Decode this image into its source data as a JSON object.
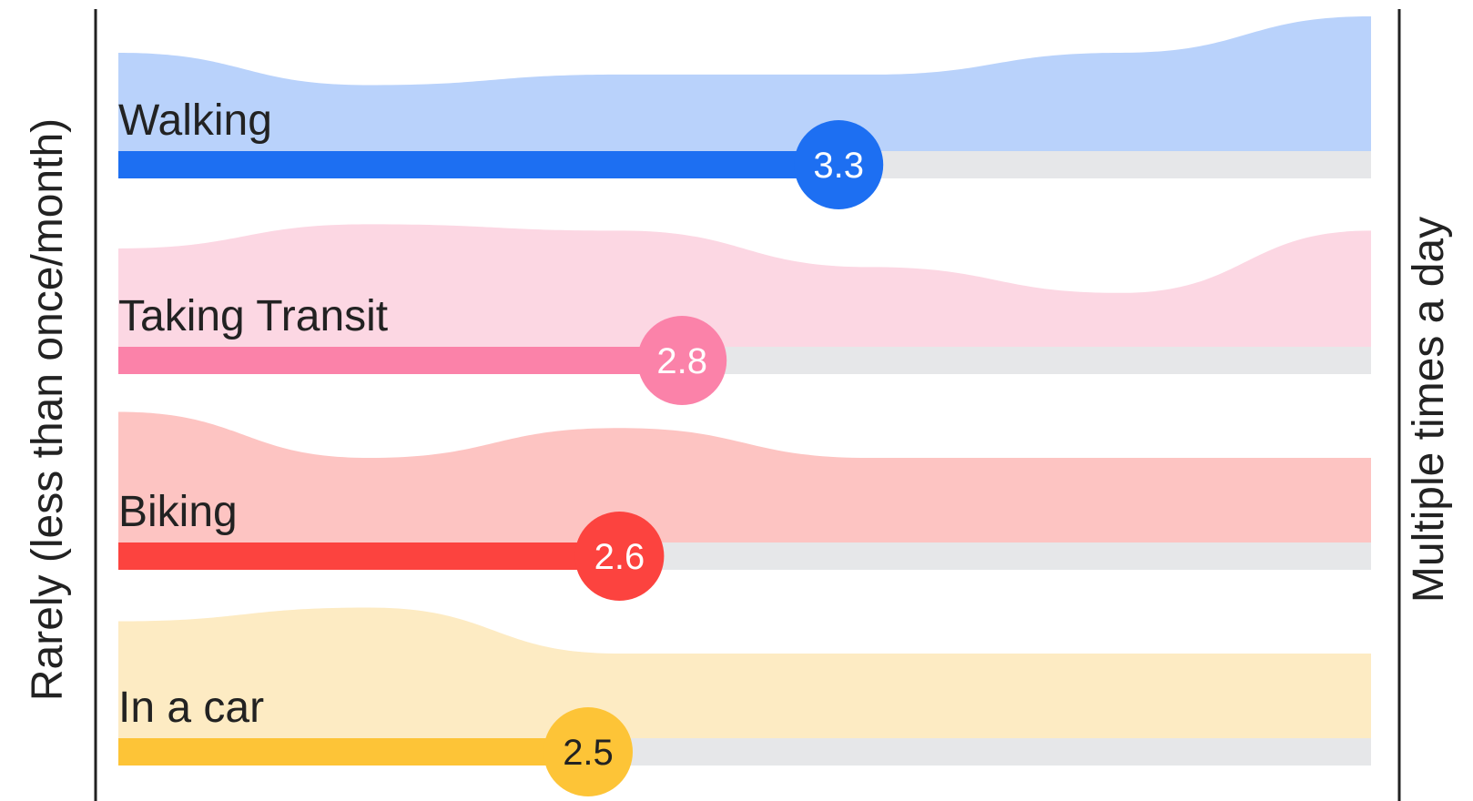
{
  "chart_data": {
    "type": "bar",
    "x_axis_left_label": "Rarely (less than once/month)",
    "x_axis_right_label": "Multiple times a day",
    "xlim": [
      1,
      5
    ],
    "track_color": "#e6e7e9",
    "series": [
      {
        "label": "Walking",
        "value": 3.3,
        "value_text": "3.3",
        "bar_color": "#1d6ff2",
        "fill_color": "#b9d2fb",
        "marker_text_color": "#ffffff",
        "distribution": [
          0.55,
          0.15,
          0.28,
          0.28,
          0.55,
          1.0
        ]
      },
      {
        "label": "Taking Transit",
        "value": 2.8,
        "value_text": "2.8",
        "bar_color": "#fb82a9",
        "fill_color": "#fcd7e3",
        "marker_text_color": "#ffffff",
        "distribution": [
          0.55,
          0.85,
          0.77,
          0.32,
          0.0,
          0.77
        ]
      },
      {
        "label": "Biking",
        "value": 2.6,
        "value_text": "2.6",
        "bar_color": "#fc433f",
        "fill_color": "#fdc4c2",
        "marker_text_color": "#ffffff",
        "distribution": [
          0.95,
          0.38,
          0.75,
          0.38,
          0.38,
          0.38
        ]
      },
      {
        "label": "In a car",
        "value": 2.5,
        "value_text": "2.5",
        "bar_color": "#fdc437",
        "fill_color": "#fdebc3",
        "marker_text_color": "#222222",
        "distribution": [
          0.78,
          0.95,
          0.38,
          0.38,
          0.38,
          0.38
        ]
      }
    ]
  }
}
